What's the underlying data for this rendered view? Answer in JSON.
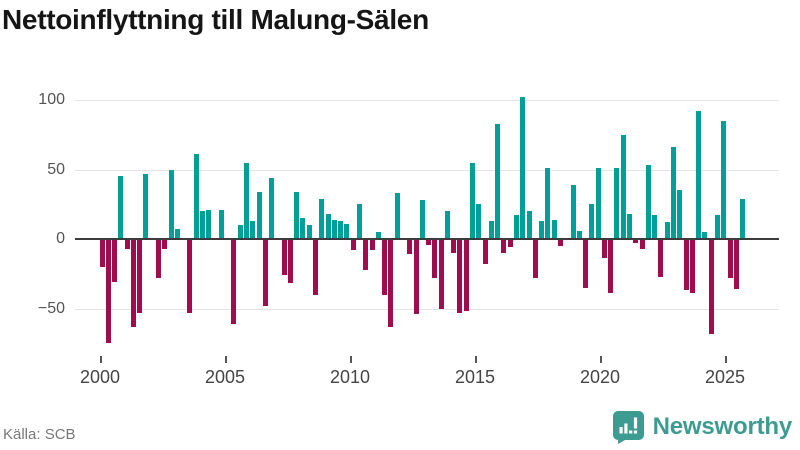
{
  "title": "Nettoinflyttning till Malung-Sälen",
  "source": "Källa: SCB",
  "brand": {
    "name": "Newsworthy"
  },
  "colors": {
    "positive": "#00a099",
    "negative": "#a00d4e",
    "brand_teal": "#3d9c92",
    "grid": "#e4e4e4",
    "zero_line": "#3b3b3b",
    "title_text": "#151515",
    "axis_text": "#555555",
    "source_text": "#787878"
  },
  "chart_data": {
    "type": "bar",
    "title": "Nettoinflyttning till Malung-Sälen",
    "frequency": "quarterly",
    "start": "2000Q1",
    "end": "2025Q3",
    "xlabel": "",
    "ylabel": "",
    "ylim": [
      -83,
      105
    ],
    "grid": true,
    "yticks": [
      100,
      50,
      0,
      -50
    ],
    "ytick_labels": [
      "100",
      "50",
      "0",
      "−50"
    ],
    "xticks": [
      2000,
      2005,
      2010,
      2015,
      2020,
      2025
    ],
    "values_by_year": {
      "2000": [
        -20,
        -75,
        -31,
        45
      ],
      "2001": [
        -7,
        -63,
        -53,
        47
      ],
      "2002": [
        0,
        -28,
        -7,
        50
      ],
      "2003": [
        7,
        0,
        -53,
        61
      ],
      "2004": [
        20,
        21,
        0,
        21
      ],
      "2005": [
        0,
        -61,
        10,
        55
      ],
      "2006": [
        13,
        34,
        -48,
        44
      ],
      "2007": [
        0,
        -26,
        -32,
        34
      ],
      "2008": [
        15,
        10,
        -40,
        29
      ],
      "2009": [
        18,
        14,
        13,
        11
      ],
      "2010": [
        -8,
        25,
        -22,
        -8
      ],
      "2011": [
        5,
        -40,
        -63,
        33
      ],
      "2012": [
        0,
        -11,
        -54,
        28
      ],
      "2013": [
        -4,
        -28,
        -50,
        20
      ],
      "2014": [
        -10,
        -53,
        -52,
        55
      ],
      "2015": [
        25,
        -18,
        13,
        83
      ],
      "2016": [
        -10,
        -6,
        17,
        102
      ],
      "2017": [
        20,
        -28,
        13,
        51
      ],
      "2018": [
        14,
        -5,
        0,
        39
      ],
      "2019": [
        6,
        -35,
        25,
        51
      ],
      "2020": [
        -14,
        -39,
        51,
        75
      ],
      "2021": [
        18,
        -3,
        -7,
        53
      ],
      "2022": [
        17,
        -27,
        12,
        66
      ],
      "2023": [
        35,
        -37,
        -39,
        92
      ],
      "2024": [
        5,
        -68,
        17,
        85
      ],
      "2025": [
        -28,
        -36,
        29
      ]
    }
  }
}
